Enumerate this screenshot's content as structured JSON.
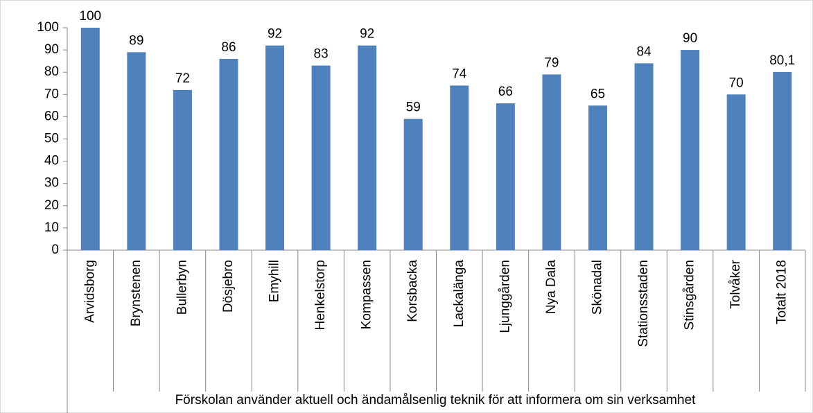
{
  "chart_data": {
    "type": "bar",
    "categories": [
      "Arvidsborg",
      "Brynstenen",
      "Bullerbyn",
      "Dösjebro",
      "Emyhill",
      "Henkelstorp",
      "Kompassen",
      "Korsbacka",
      "Lackalänga",
      "Ljunggården",
      "Nya Dala",
      "Skönadal",
      "Stationsstaden",
      "Stinsgården",
      "Tolvåker",
      "Totalt 2018"
    ],
    "values": [
      100,
      89,
      72,
      86,
      92,
      83,
      92,
      59,
      74,
      66,
      79,
      65,
      84,
      90,
      70,
      80.1
    ],
    "value_labels": [
      "100",
      "89",
      "72",
      "86",
      "92",
      "83",
      "92",
      "59",
      "74",
      "66",
      "79",
      "65",
      "84",
      "90",
      "70",
      "80,1"
    ],
    "x_group_label": "Förskolan använder aktuell och ändamålsenlig teknik för att informera om sin verksamhet",
    "color": "#4f81bd",
    "ylim": [
      0,
      100
    ],
    "yticks": [
      0,
      10,
      20,
      30,
      40,
      50,
      60,
      70,
      80,
      90,
      100
    ],
    "grid": false
  }
}
